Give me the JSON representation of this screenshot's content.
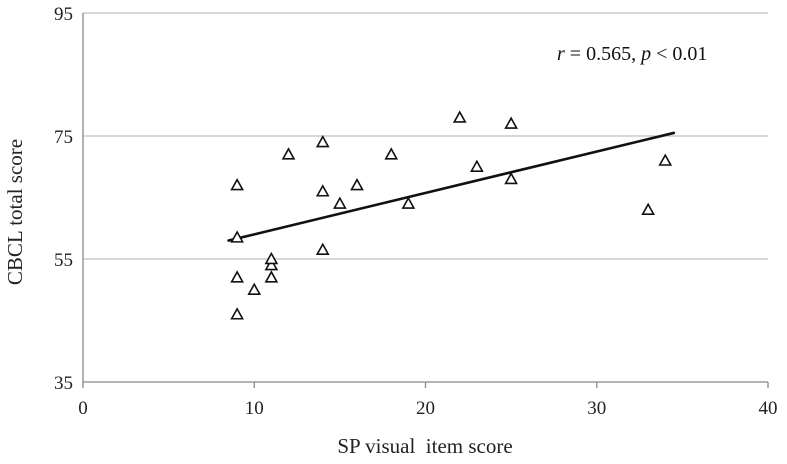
{
  "chart_data": {
    "type": "scatter",
    "title": "",
    "xlabel": "SP visual  item score",
    "ylabel": "CBCL total score",
    "xlim": [
      0,
      40
    ],
    "ylim": [
      35,
      95
    ],
    "xticks": [
      "0",
      "10",
      "20",
      "30",
      "40"
    ],
    "yticks": [
      "35",
      "55",
      "75",
      "95"
    ],
    "grid": "horizontal",
    "marker": "open-triangle",
    "annotation": {
      "r_symbol": "r",
      "r_text": " = 0.565, ",
      "p_symbol": "p",
      "p_text": " < 0.01"
    },
    "points": [
      {
        "x": 9,
        "y": 46
      },
      {
        "x": 9,
        "y": 52
      },
      {
        "x": 9,
        "y": 58.5
      },
      {
        "x": 9,
        "y": 67
      },
      {
        "x": 10,
        "y": 50
      },
      {
        "x": 11,
        "y": 52
      },
      {
        "x": 11,
        "y": 54
      },
      {
        "x": 11,
        "y": 55
      },
      {
        "x": 12,
        "y": 72
      },
      {
        "x": 14,
        "y": 56.5
      },
      {
        "x": 14,
        "y": 66
      },
      {
        "x": 14,
        "y": 74
      },
      {
        "x": 15,
        "y": 64
      },
      {
        "x": 16,
        "y": 67
      },
      {
        "x": 18,
        "y": 72
      },
      {
        "x": 19,
        "y": 64
      },
      {
        "x": 22,
        "y": 78
      },
      {
        "x": 23,
        "y": 70
      },
      {
        "x": 25,
        "y": 68
      },
      {
        "x": 25,
        "y": 77
      },
      {
        "x": 33,
        "y": 63
      },
      {
        "x": 34,
        "y": 71
      }
    ],
    "trendline": {
      "x": [
        8.5,
        34.5
      ],
      "y": [
        58,
        75.5
      ]
    },
    "colors": {
      "marker": "#111111",
      "trend": "#111111",
      "grid": "#bfbfbf",
      "axis": "#888888"
    }
  }
}
